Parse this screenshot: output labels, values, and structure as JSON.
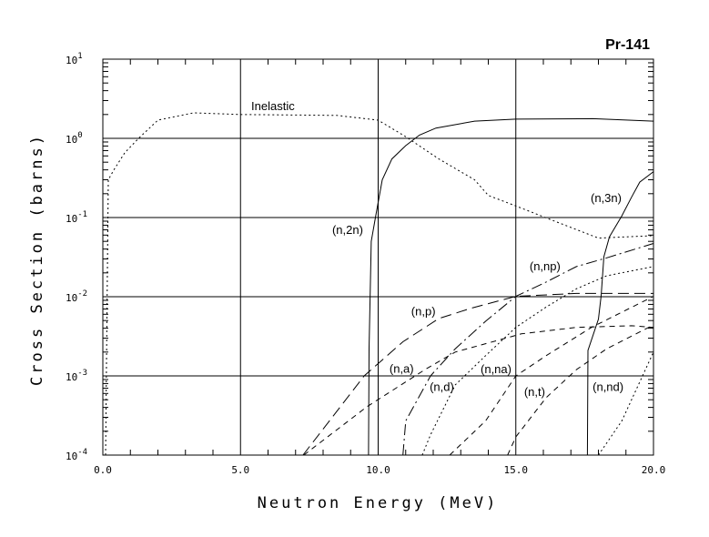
{
  "chart_data": {
    "type": "line",
    "title": "Pr-141",
    "xlabel": "Neutron Energy (MeV)",
    "ylabel": "Cross Section (barns)",
    "xlim": [
      0,
      20
    ],
    "ylim": [
      0.0001,
      10
    ],
    "yscale": "log",
    "grid": true,
    "x_ticks": [
      {
        "value": 0,
        "label": "0.0"
      },
      {
        "value": 5,
        "label": "5.0"
      },
      {
        "value": 10,
        "label": "10.0"
      },
      {
        "value": 15,
        "label": "15.0"
      },
      {
        "value": 20,
        "label": "20.0"
      }
    ],
    "y_ticks": [
      {
        "value": 10,
        "base": "10",
        "exp": "1"
      },
      {
        "value": 1,
        "base": "10",
        "exp": "0"
      },
      {
        "value": 0.1,
        "base": "10",
        "exp": "-1"
      },
      {
        "value": 0.01,
        "base": "10",
        "exp": "-2"
      },
      {
        "value": 0.001,
        "base": "10",
        "exp": "-3"
      },
      {
        "value": 0.0001,
        "base": "10",
        "exp": "-4"
      }
    ],
    "series": [
      {
        "name": "Inelastic",
        "style": "dotted",
        "x": [
          0.1,
          0.2,
          0.4,
          0.8,
          1.3,
          2.0,
          3.3,
          5.0,
          8.5,
          10.0,
          11.0,
          12.2,
          13.5,
          14.0,
          15.0,
          16.3,
          18.0,
          20.0
        ],
        "y": [
          0.0001,
          0.3,
          0.4,
          0.66,
          1.0,
          1.7,
          2.1,
          2.0,
          1.95,
          1.7,
          1.05,
          0.55,
          0.3,
          0.19,
          0.14,
          0.093,
          0.055,
          0.059
        ]
      },
      {
        "name": "(n,2n)",
        "style": "solid",
        "x": [
          9.65,
          9.67,
          9.75,
          9.9,
          10.15,
          10.5,
          11.0,
          11.5,
          12.1,
          13.5,
          15.0,
          17.8,
          20.0
        ],
        "y": [
          0.0001,
          0.0022,
          0.05,
          0.1,
          0.3,
          0.55,
          0.81,
          1.1,
          1.35,
          1.65,
          1.75,
          1.77,
          1.65
        ]
      },
      {
        "name": "(n,3n)",
        "style": "solid",
        "x": [
          17.6,
          17.62,
          18.0,
          18.1,
          18.2,
          18.4,
          18.85,
          19.2,
          19.5,
          20.0
        ],
        "y": [
          0.0001,
          0.0021,
          0.0052,
          0.0103,
          0.032,
          0.057,
          0.105,
          0.18,
          0.28,
          0.38
        ]
      },
      {
        "name": "(n,np)",
        "style": "dashdot",
        "x": [
          10.9,
          11.0,
          11.9,
          12.8,
          13.9,
          15.0,
          16.1,
          17.2,
          18.3,
          20.0
        ],
        "y": [
          0.0001,
          0.00027,
          0.001,
          0.0022,
          0.0049,
          0.0101,
          0.0153,
          0.024,
          0.031,
          0.047
        ]
      },
      {
        "name": "(n,p)",
        "style": "longdash",
        "x": [
          7.27,
          9.49,
          10.9,
          12.2,
          13.4,
          15.0,
          17.2,
          20.0
        ],
        "y": [
          0.0001,
          0.001,
          0.0027,
          0.0053,
          0.0072,
          0.0101,
          0.011,
          0.011
        ]
      },
      {
        "name": "(n,a)",
        "style": "dashed",
        "x": [
          7.3,
          9.6,
          11.7,
          12.8,
          15.2,
          17.2,
          19.2,
          20.0
        ],
        "y": [
          0.0001,
          0.00041,
          0.0012,
          0.002,
          0.0034,
          0.0041,
          0.0043,
          0.0041
        ]
      },
      {
        "name": "(n,d)",
        "style": "dotted",
        "x": [
          11.6,
          11.9,
          12.8,
          13.9,
          15.0,
          16.1,
          17.2,
          18.3,
          20.0
        ],
        "y": [
          0.0001,
          0.00018,
          0.00077,
          0.0018,
          0.0041,
          0.0074,
          0.0126,
          0.0184,
          0.024
        ]
      },
      {
        "name": "(n,na)",
        "style": "dashed",
        "x": [
          12.6,
          13.9,
          15.0,
          16.1,
          17.75,
          20.0
        ],
        "y": [
          0.0001,
          0.00027,
          0.001,
          0.0018,
          0.0041,
          0.0101
        ]
      },
      {
        "name": "(n,t)",
        "style": "dashed",
        "x": [
          14.7,
          15.0,
          16.1,
          17.2,
          18.3,
          20.0
        ],
        "y": [
          0.0001,
          0.00017,
          0.00053,
          0.0012,
          0.0022,
          0.0044
        ]
      },
      {
        "name": "(n,nd)",
        "style": "dotted",
        "x": [
          18.0,
          18.85,
          20.0
        ],
        "y": [
          0.0001,
          0.00027,
          0.002
        ]
      }
    ],
    "annotations": [
      {
        "text": "Inelastic",
        "x": 5.39,
        "y": 2.6
      },
      {
        "text": "(n,2n)",
        "x": 8.33,
        "y": 0.071
      },
      {
        "text": "(n,3n)",
        "x": 17.72,
        "y": 0.18
      },
      {
        "text": "(n,np)",
        "x": 15.5,
        "y": 0.0245
      },
      {
        "text": "(n,p)",
        "x": 11.2,
        "y": 0.0066
      },
      {
        "text": "(n,a)",
        "x": 10.41,
        "y": 0.00126
      },
      {
        "text": "(n,d)",
        "x": 11.87,
        "y": 0.00074
      },
      {
        "text": "(n,na)",
        "x": 13.72,
        "y": 0.00123
      },
      {
        "text": "(n,t)",
        "x": 15.3,
        "y": 0.00064
      },
      {
        "text": "(n,nd)",
        "x": 17.79,
        "y": 0.00074
      }
    ]
  }
}
